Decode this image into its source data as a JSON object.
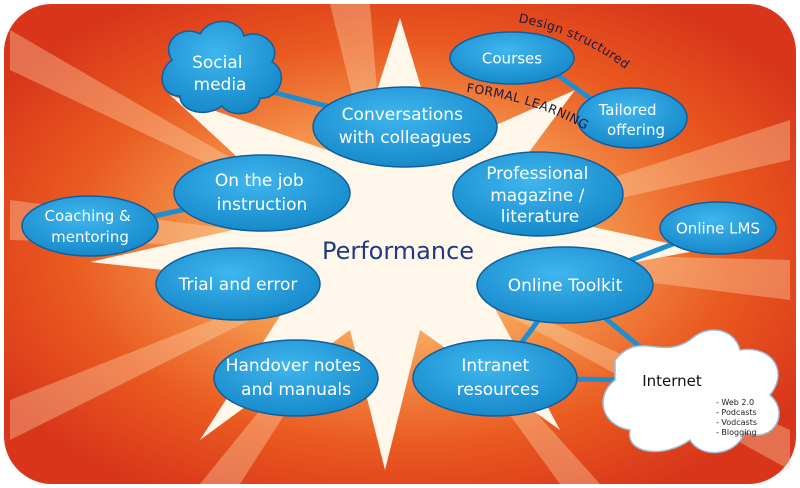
{
  "center_label": "Performance",
  "formal_learning": {
    "design_label": "Design structured",
    "formal_label": "FORMAL LEARNING",
    "courses": "Courses",
    "tailored": [
      "Tailored",
      "offering"
    ]
  },
  "nodes": {
    "social_media": [
      "Social",
      "media"
    ],
    "conversations": [
      "Conversations",
      "with colleagues"
    ],
    "on_the_job": [
      "On the job",
      "instruction"
    ],
    "coaching": [
      "Coaching &",
      "mentoring"
    ],
    "professional": [
      "Professional",
      "magazine /",
      "literature"
    ],
    "online_lms": "Online LMS",
    "online_toolkit": "Online Toolkit",
    "trial_error": "Trial and error",
    "handover": [
      "Handover notes",
      "and manuals"
    ],
    "intranet": [
      "Intranet",
      "resources"
    ]
  },
  "internet": {
    "label": "Internet",
    "items": [
      "- Web 2.0",
      "- Podcasts",
      "- Vodcasts",
      "- Blogging"
    ]
  },
  "colors": {
    "node_fill": "#1e9ad8",
    "node_stroke": "#0d5fa0",
    "bg_outer": "#d8351a",
    "bg_mid": "#f27a2a",
    "star": "#fff7ea",
    "title": "#1d3b86"
  }
}
